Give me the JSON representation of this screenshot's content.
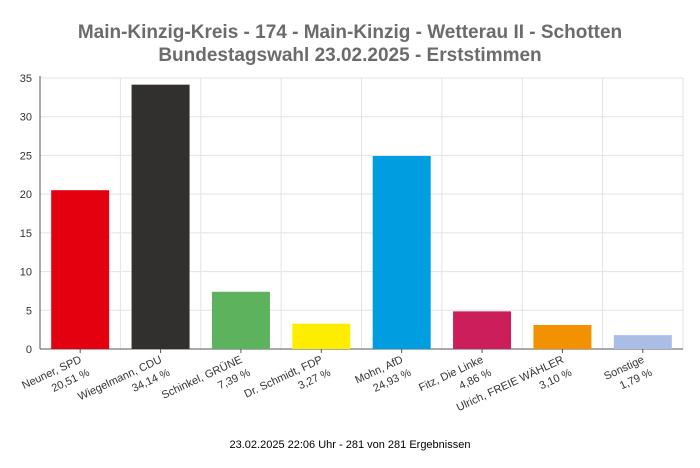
{
  "chart_data": {
    "type": "bar",
    "title": "Main-Kinzig-Kreis - 174 - Main-Kinzig - Wetterau II - Schotten",
    "subtitle": "Bundestagswahl 23.02.2025  - Erststimmen",
    "categories": [
      {
        "name": "Neuner, SPD",
        "label": "20,51 %",
        "value": 20.51,
        "color": "#e3000f"
      },
      {
        "name": "Wiegelmann, CDU",
        "label": "34,14 %",
        "value": 34.14,
        "color": "#32302e"
      },
      {
        "name": "Schinkel, GRÜNE",
        "label": "7,39 %",
        "value": 7.39,
        "color": "#5cb25d"
      },
      {
        "name": "Dr. Schmidt, FDP",
        "label": "3,27 %",
        "value": 3.27,
        "color": "#ffed00"
      },
      {
        "name": "Mohn, AfD",
        "label": "24,93 %",
        "value": 24.93,
        "color": "#009ee0"
      },
      {
        "name": "Fitz, Die Linke",
        "label": "4,86 %",
        "value": 4.86,
        "color": "#cc1e5a"
      },
      {
        "name": "Ulrich, FREIE WÄHLER",
        "label": "3,10 %",
        "value": 3.1,
        "color": "#f39200"
      },
      {
        "name": "Sonstige",
        "label": "1,79 %",
        "value": 1.79,
        "color": "#a9bde6"
      }
    ],
    "ylim": [
      0,
      35
    ],
    "yticks": [
      0,
      5,
      10,
      15,
      20,
      25,
      30,
      35
    ],
    "grid": true,
    "xlabel": "",
    "ylabel": ""
  },
  "footer": "23.02.2025 22:06 Uhr - 281 von 281 Ergebnissen"
}
